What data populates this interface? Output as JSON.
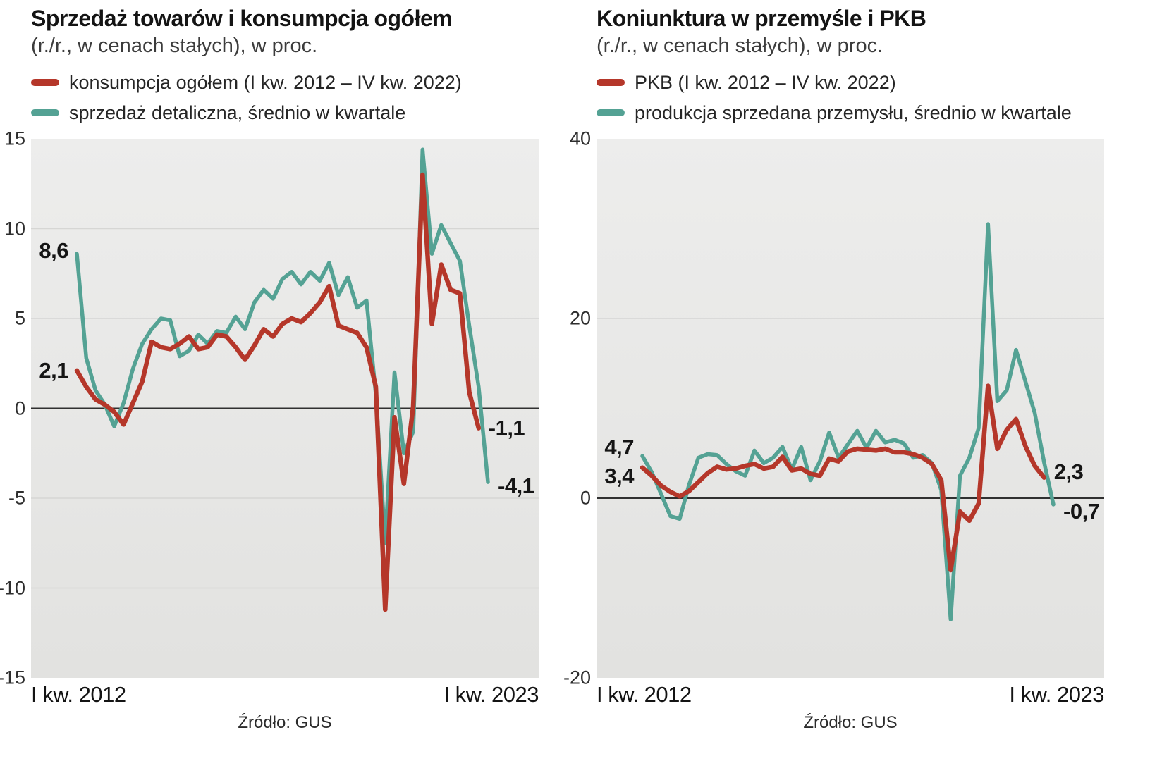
{
  "page": {
    "background": "#ffffff"
  },
  "chart_data": [
    {
      "type": "line",
      "title": "Sprzedaż towarów i konsumpcja ogółem",
      "subtitle": "(r./r., w cenach stałych), w proc.",
      "source": "Źródło: GUS",
      "x_axis": {
        "start_label": "I kw. 2012",
        "end_label": "I kw. 2023"
      },
      "ylim": [
        -15,
        15
      ],
      "yticks": [
        15,
        10,
        5,
        0,
        -5,
        -10,
        -15
      ],
      "grid": true,
      "legend_position": "top-left",
      "categories": [
        "I kw. 2012",
        "II kw. 2012",
        "III kw. 2012",
        "IV kw. 2012",
        "I kw. 2013",
        "II kw. 2013",
        "III kw. 2013",
        "IV kw. 2013",
        "I kw. 2014",
        "II kw. 2014",
        "III kw. 2014",
        "IV kw. 2014",
        "I kw. 2015",
        "II kw. 2015",
        "III kw. 2015",
        "IV kw. 2015",
        "I kw. 2016",
        "II kw. 2016",
        "III kw. 2016",
        "IV kw. 2016",
        "I kw. 2017",
        "II kw. 2017",
        "III kw. 2017",
        "IV kw. 2017",
        "I kw. 2018",
        "II kw. 2018",
        "III kw. 2018",
        "IV kw. 2018",
        "I kw. 2019",
        "II kw. 2019",
        "III kw. 2019",
        "IV kw. 2019",
        "I kw. 2020",
        "II kw. 2020",
        "III kw. 2020",
        "IV kw. 2020",
        "I kw. 2021",
        "II kw. 2021",
        "III kw. 2021",
        "IV kw. 2021",
        "I kw. 2022",
        "II kw. 2022",
        "III kw. 2022",
        "IV kw. 2022",
        "I kw. 2023"
      ],
      "series": [
        {
          "name": "konsumpcja ogółem (I kw. 2012 – IV kw. 2022)",
          "color": "#b5372a",
          "values": [
            2.1,
            1.2,
            0.5,
            0.2,
            -0.2,
            -0.9,
            0.3,
            1.5,
            3.7,
            3.4,
            3.3,
            3.6,
            4.0,
            3.3,
            3.4,
            4.1,
            4.0,
            3.4,
            2.7,
            3.5,
            4.4,
            4.0,
            4.7,
            5.0,
            4.8,
            5.3,
            5.9,
            6.8,
            4.6,
            4.4,
            4.2,
            3.4,
            1.2,
            -11.2,
            -0.5,
            -4.2,
            0.1,
            13.0,
            4.7,
            8.0,
            6.6,
            6.4,
            0.9,
            -1.1
          ]
        },
        {
          "name": "sprzedaż detaliczna, średnio w kwartale",
          "color": "#54a294",
          "values": [
            8.6,
            2.8,
            1.0,
            0.2,
            -1.0,
            0.3,
            2.2,
            3.6,
            4.4,
            5.0,
            4.9,
            2.9,
            3.2,
            4.1,
            3.6,
            4.3,
            4.2,
            5.1,
            4.4,
            5.9,
            6.6,
            6.1,
            7.2,
            7.6,
            6.9,
            7.6,
            7.1,
            8.1,
            6.3,
            7.3,
            5.6,
            6.0,
            0.8,
            -7.5,
            2.0,
            -2.5,
            -1.3,
            14.4,
            8.6,
            10.2,
            9.2,
            8.2,
            4.6,
            1.2,
            -4.1
          ]
        }
      ],
      "annotations": [
        {
          "text": "8,6",
          "x": 0,
          "y": 8.6,
          "side": "left",
          "dy": -4
        },
        {
          "text": "2,1",
          "x": 0,
          "y": 2.1,
          "side": "left",
          "dy": 0
        },
        {
          "text": "-1,1",
          "x": 43,
          "y": -1.1,
          "side": "right",
          "dy": 0
        },
        {
          "text": "-4,1",
          "x": 44,
          "y": -4.1,
          "side": "right",
          "dy": 6
        }
      ]
    },
    {
      "type": "line",
      "title": "Koniunktura w przemyśle i PKB",
      "subtitle": "(r./r., w cenach stałych), w proc.",
      "source": "Źródło: GUS",
      "x_axis": {
        "start_label": "I kw. 2012",
        "end_label": "I kw. 2023"
      },
      "ylim": [
        -20,
        40
      ],
      "yticks": [
        40,
        20,
        0,
        -20
      ],
      "grid": true,
      "legend_position": "top-left",
      "categories": [
        "I kw. 2012",
        "II kw. 2012",
        "III kw. 2012",
        "IV kw. 2012",
        "I kw. 2013",
        "II kw. 2013",
        "III kw. 2013",
        "IV kw. 2013",
        "I kw. 2014",
        "II kw. 2014",
        "III kw. 2014",
        "IV kw. 2014",
        "I kw. 2015",
        "II kw. 2015",
        "III kw. 2015",
        "IV kw. 2015",
        "I kw. 2016",
        "II kw. 2016",
        "III kw. 2016",
        "IV kw. 2016",
        "I kw. 2017",
        "II kw. 2017",
        "III kw. 2017",
        "IV kw. 2017",
        "I kw. 2018",
        "II kw. 2018",
        "III kw. 2018",
        "IV kw. 2018",
        "I kw. 2019",
        "II kw. 2019",
        "III kw. 2019",
        "IV kw. 2019",
        "I kw. 2020",
        "II kw. 2020",
        "III kw. 2020",
        "IV kw. 2020",
        "I kw. 2021",
        "II kw. 2021",
        "III kw. 2021",
        "IV kw. 2021",
        "I kw. 2022",
        "II kw. 2022",
        "III kw. 2022",
        "IV kw. 2022",
        "I kw. 2023"
      ],
      "series": [
        {
          "name": "PKB (I kw. 2012 – IV kw. 2022)",
          "color": "#b5372a",
          "values": [
            3.4,
            2.5,
            1.4,
            0.7,
            0.2,
            0.8,
            1.8,
            2.8,
            3.5,
            3.2,
            3.3,
            3.6,
            3.8,
            3.3,
            3.5,
            4.6,
            3.1,
            3.3,
            2.7,
            2.5,
            4.4,
            4.1,
            5.2,
            5.5,
            5.4,
            5.3,
            5.5,
            5.1,
            5.1,
            4.9,
            4.5,
            3.8,
            2.0,
            -8.0,
            -1.5,
            -2.5,
            -0.6,
            12.5,
            5.5,
            7.6,
            8.8,
            5.8,
            3.6,
            2.3
          ]
        },
        {
          "name": "produkcja sprzedana przemysłu, średnio w kwartale",
          "color": "#54a294",
          "values": [
            4.7,
            2.9,
            0.5,
            -2.0,
            -2.3,
            1.5,
            4.5,
            4.9,
            4.8,
            3.8,
            3.0,
            2.5,
            5.3,
            3.9,
            4.5,
            5.7,
            3.2,
            5.7,
            2.0,
            4.1,
            7.3,
            4.5,
            6.0,
            7.5,
            5.6,
            7.5,
            6.2,
            6.5,
            6.1,
            4.5,
            4.8,
            3.9,
            0.9,
            -13.5,
            2.5,
            4.5,
            7.8,
            30.5,
            10.8,
            12.0,
            16.5,
            13.0,
            9.5,
            4.0,
            -0.7
          ]
        }
      ],
      "annotations": [
        {
          "text": "4,7",
          "x": 0,
          "y": 4.7,
          "side": "left",
          "dy": -12
        },
        {
          "text": "3,4",
          "x": 0,
          "y": 3.4,
          "side": "left",
          "dy": 12
        },
        {
          "text": "2,3",
          "x": 43,
          "y": 2.3,
          "side": "right",
          "dy": -8
        },
        {
          "text": "-0,7",
          "x": 44,
          "y": -0.7,
          "side": "right",
          "dy": 10
        }
      ]
    }
  ]
}
